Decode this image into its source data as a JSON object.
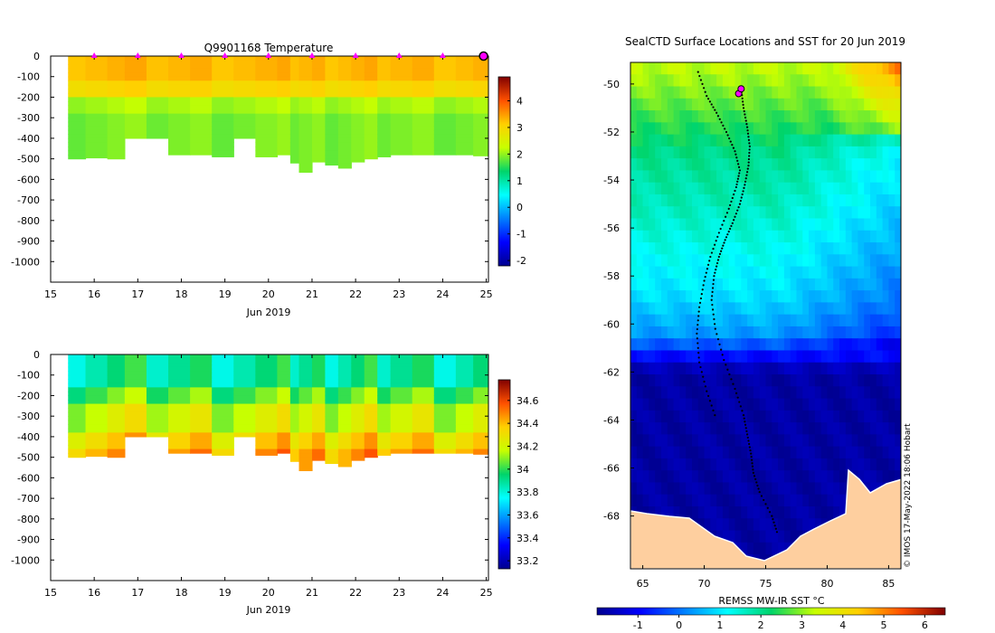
{
  "chart_data": [
    {
      "type": "heatmap",
      "title": "Q9901168  Temperature",
      "xlabel": "Jun 2019",
      "x_ticks": [
        "15",
        "16",
        "17",
        "18",
        "19",
        "20",
        "21",
        "22",
        "23",
        "24",
        "25"
      ],
      "y_ticks": [
        "0",
        "-100",
        "-200",
        "-300",
        "-400",
        "-500",
        "-600",
        "-700",
        "-800",
        "-900",
        "-1000"
      ],
      "xlim": [
        15,
        25.05
      ],
      "ylim": [
        -1100,
        0
      ],
      "colorbar": {
        "min": -2.2,
        "max": 4.9,
        "ticks": [
          "-2",
          "-1",
          "0",
          "1",
          "2",
          "3",
          "4"
        ]
      },
      "profile_markers_x": [
        16,
        17,
        18,
        19,
        20,
        21,
        22,
        23,
        24
      ],
      "current_marker_x": 25,
      "layers": [
        {
          "top": 0,
          "bottom": -120,
          "value": 3.3
        },
        {
          "top": -120,
          "bottom": -200,
          "value": 3.0
        },
        {
          "top": -200,
          "bottom": -280,
          "value": 2.1
        },
        {
          "top": -280,
          "bottom": -600,
          "value": 1.9
        }
      ],
      "profiles": {
        "x": [
          15.4,
          15.8,
          16.3,
          16.7,
          17.2,
          17.7,
          18.2,
          18.7,
          19.2,
          19.7,
          20.2,
          20.5,
          20.7,
          21.0,
          21.3,
          21.6,
          21.9,
          22.2,
          22.5,
          22.8,
          23.3,
          23.8,
          24.3,
          24.7
        ],
        "bottom": [
          -500,
          -495,
          -500,
          -400,
          -400,
          -480,
          -480,
          -490,
          -400,
          -490,
          -480,
          -520,
          -565,
          -515,
          -530,
          -545,
          -515,
          -500,
          -490,
          -480,
          -480,
          -480,
          -480,
          -485
        ]
      }
    },
    {
      "type": "heatmap",
      "title": "",
      "xlabel": "Jun 2019",
      "x_ticks": [
        "15",
        "16",
        "17",
        "18",
        "19",
        "20",
        "21",
        "22",
        "23",
        "24",
        "25"
      ],
      "y_ticks": [
        "0",
        "-100",
        "-200",
        "-300",
        "-400",
        "-500",
        "-600",
        "-700",
        "-800",
        "-900",
        "-1000"
      ],
      "xlim": [
        15,
        25.05
      ],
      "ylim": [
        -1100,
        0
      ],
      "colorbar": {
        "min": 33.13,
        "max": 34.78,
        "ticks": [
          "33.2",
          "33.4",
          "33.6",
          "33.8",
          "34",
          "34.2",
          "34.4",
          "34.6"
        ]
      },
      "layers": [
        {
          "top": 0,
          "bottom": -160,
          "value": 33.9
        },
        {
          "top": -160,
          "bottom": -250,
          "value": 34.05
        },
        {
          "top": -250,
          "bottom": -380,
          "value": 34.2
        },
        {
          "top": -380,
          "bottom": -460,
          "value": 34.35
        },
        {
          "top": -460,
          "bottom": -600,
          "value": 34.45
        }
      ],
      "profiles": {
        "x": [
          15.4,
          15.8,
          16.3,
          16.7,
          17.2,
          17.7,
          18.2,
          18.7,
          19.2,
          19.7,
          20.2,
          20.5,
          20.7,
          21.0,
          21.3,
          21.6,
          21.9,
          22.2,
          22.5,
          22.8,
          23.3,
          23.8,
          24.3,
          24.7
        ],
        "bottom": [
          -500,
          -495,
          -500,
          -400,
          -400,
          -480,
          -480,
          -490,
          -400,
          -490,
          -480,
          -520,
          -565,
          -515,
          -530,
          -545,
          -515,
          -500,
          -490,
          -480,
          -480,
          -480,
          -480,
          -485
        ]
      }
    },
    {
      "type": "heatmap",
      "title": "SealCTD Surface Locations and SST for 20 Jun 2019",
      "xlabel": "REMSS MW-IR SST °C",
      "x_ticks": [
        "65",
        "70",
        "75",
        "80",
        "85"
      ],
      "y_ticks": [
        "-50",
        "-52",
        "-54",
        "-56",
        "-58",
        "-60",
        "-62",
        "-64",
        "-66",
        "-68"
      ],
      "xlim": [
        64,
        86
      ],
      "ylim": [
        -70.2,
        -49.1
      ],
      "colorbar": {
        "min": -2.0,
        "max": 6.5,
        "ticks": [
          "-1",
          "0",
          "1",
          "2",
          "3",
          "4",
          "5",
          "6"
        ]
      },
      "sst_latitude_bands": [
        {
          "lat": -49.5,
          "value": 3.2
        },
        {
          "lat": -51,
          "value": 2.7
        },
        {
          "lat": -53,
          "value": 2.0
        },
        {
          "lat": -55,
          "value": 1.7
        },
        {
          "lat": -57,
          "value": 1.3
        },
        {
          "lat": -59,
          "value": 0.9
        },
        {
          "lat": -60.5,
          "value": 0.3
        },
        {
          "lat": -62,
          "value": -1.8
        },
        {
          "lat": -70,
          "value": -1.8
        }
      ],
      "track_west": {
        "lon": [
          69.5,
          70.2,
          71.0,
          71.8,
          72.5,
          72.9,
          72.6,
          72.0,
          71.2,
          70.5,
          70.0,
          69.6,
          69.4,
          69.6,
          70.2,
          71.0
        ],
        "lat": [
          -49.5,
          -50.5,
          -51.2,
          -52.0,
          -52.8,
          -53.6,
          -54.3,
          -55.2,
          -56.2,
          -57.2,
          -58.2,
          -59.3,
          -60.4,
          -61.6,
          -62.8,
          -64.0
        ]
      },
      "track_east": {
        "lon": [
          73.0,
          73.2,
          73.5,
          73.7,
          73.6,
          73.3,
          72.9,
          72.3,
          71.7,
          71.2,
          70.8,
          70.6,
          70.9,
          71.6,
          72.5,
          73.2,
          73.5,
          73.8,
          74.0,
          74.5,
          75.5,
          76.0
        ],
        "lat": [
          -50.2,
          -51.0,
          -51.8,
          -52.6,
          -53.4,
          -54.2,
          -55.0,
          -55.8,
          -56.5,
          -57.2,
          -58.0,
          -59.0,
          -60.2,
          -61.5,
          -62.7,
          -63.8,
          -64.6,
          -65.4,
          -66.2,
          -67.0,
          -68.0,
          -68.8
        ]
      },
      "surface_locations": [
        {
          "lon": 72.8,
          "lat": -50.4
        },
        {
          "lon": 73.0,
          "lat": -50.2
        }
      ],
      "credit": "© IMOS 17-May-2022 18:06 Hobart"
    }
  ]
}
